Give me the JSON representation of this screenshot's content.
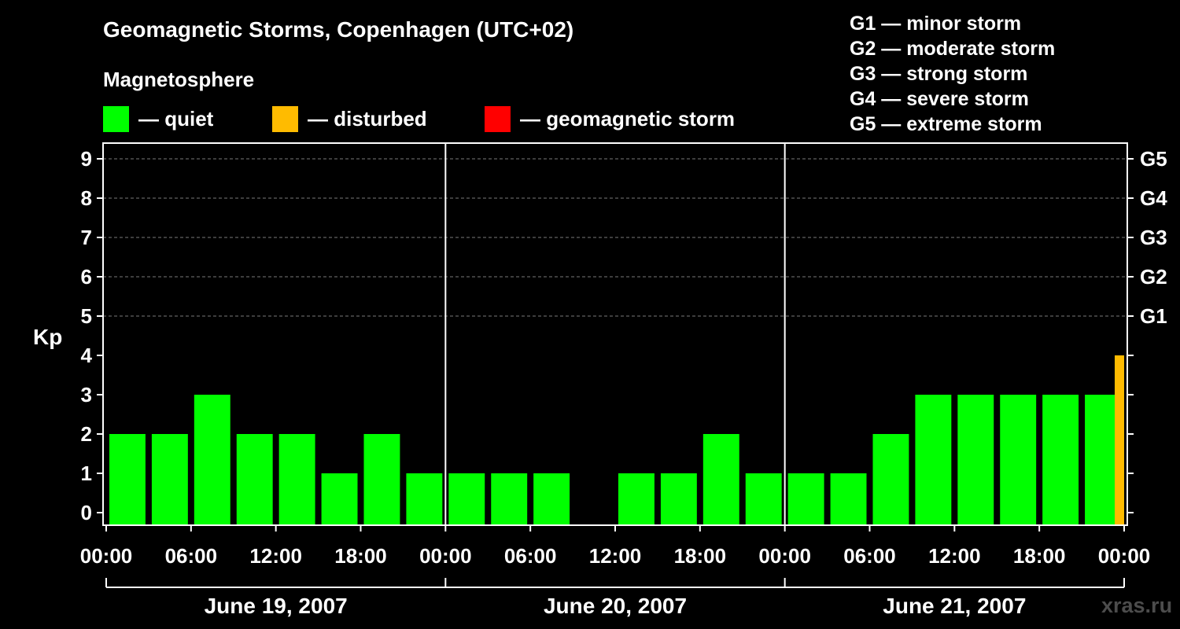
{
  "header": {
    "title": "Geomagnetic Storms, Copenhagen (UTC+02)",
    "subtitle": "Magnetosphere"
  },
  "legend": [
    {
      "label": "— quiet",
      "color": "#00ff00"
    },
    {
      "label": "— disturbed",
      "color": "#ffbb00"
    },
    {
      "label": "— geomagnetic storm",
      "color": "#ff0000"
    }
  ],
  "storm_scale": [
    "G1 — minor storm",
    "G2 — moderate storm",
    "G3 — strong storm",
    "G4 — severe storm",
    "G5 — extreme storm"
  ],
  "watermark": "xras.ru",
  "chart_data": {
    "type": "bar",
    "title": "Geomagnetic Storms, Copenhagen (UTC+02)",
    "ylabel": "Kp",
    "xlabel": "",
    "ylim": [
      0,
      9
    ],
    "y_ticks": [
      "0",
      "1",
      "2",
      "3",
      "4",
      "5",
      "6",
      "7",
      "8",
      "9"
    ],
    "right_axis_labels": [
      {
        "kp": 5,
        "label": "G1"
      },
      {
        "kp": 6,
        "label": "G2"
      },
      {
        "kp": 7,
        "label": "G3"
      },
      {
        "kp": 8,
        "label": "G4"
      },
      {
        "kp": 9,
        "label": "G5"
      }
    ],
    "x_ticks": [
      "00:00",
      "06:00",
      "12:00",
      "18:00",
      "00:00",
      "06:00",
      "12:00",
      "18:00",
      "00:00",
      "06:00",
      "12:00",
      "18:00",
      "00:00"
    ],
    "days": [
      "June 19, 2007",
      "June 20, 2007",
      "June 21, 2007"
    ],
    "interval_hours": 3,
    "series": [
      {
        "name": "Kp",
        "values": [
          2,
          2,
          3,
          2,
          2,
          1,
          2,
          1,
          1,
          1,
          1,
          0,
          1,
          1,
          2,
          1,
          1,
          1,
          2,
          3,
          3,
          3,
          3,
          3,
          4
        ],
        "colors": [
          "#00ff00",
          "#00ff00",
          "#00ff00",
          "#00ff00",
          "#00ff00",
          "#00ff00",
          "#00ff00",
          "#00ff00",
          "#00ff00",
          "#00ff00",
          "#00ff00",
          "#00ff00",
          "#00ff00",
          "#00ff00",
          "#00ff00",
          "#00ff00",
          "#00ff00",
          "#00ff00",
          "#00ff00",
          "#00ff00",
          "#00ff00",
          "#00ff00",
          "#00ff00",
          "#00ff00",
          "#ffbb00"
        ]
      }
    ],
    "last_bar_partial": true,
    "grid": "dashed horizontal at Kp 5-9"
  }
}
